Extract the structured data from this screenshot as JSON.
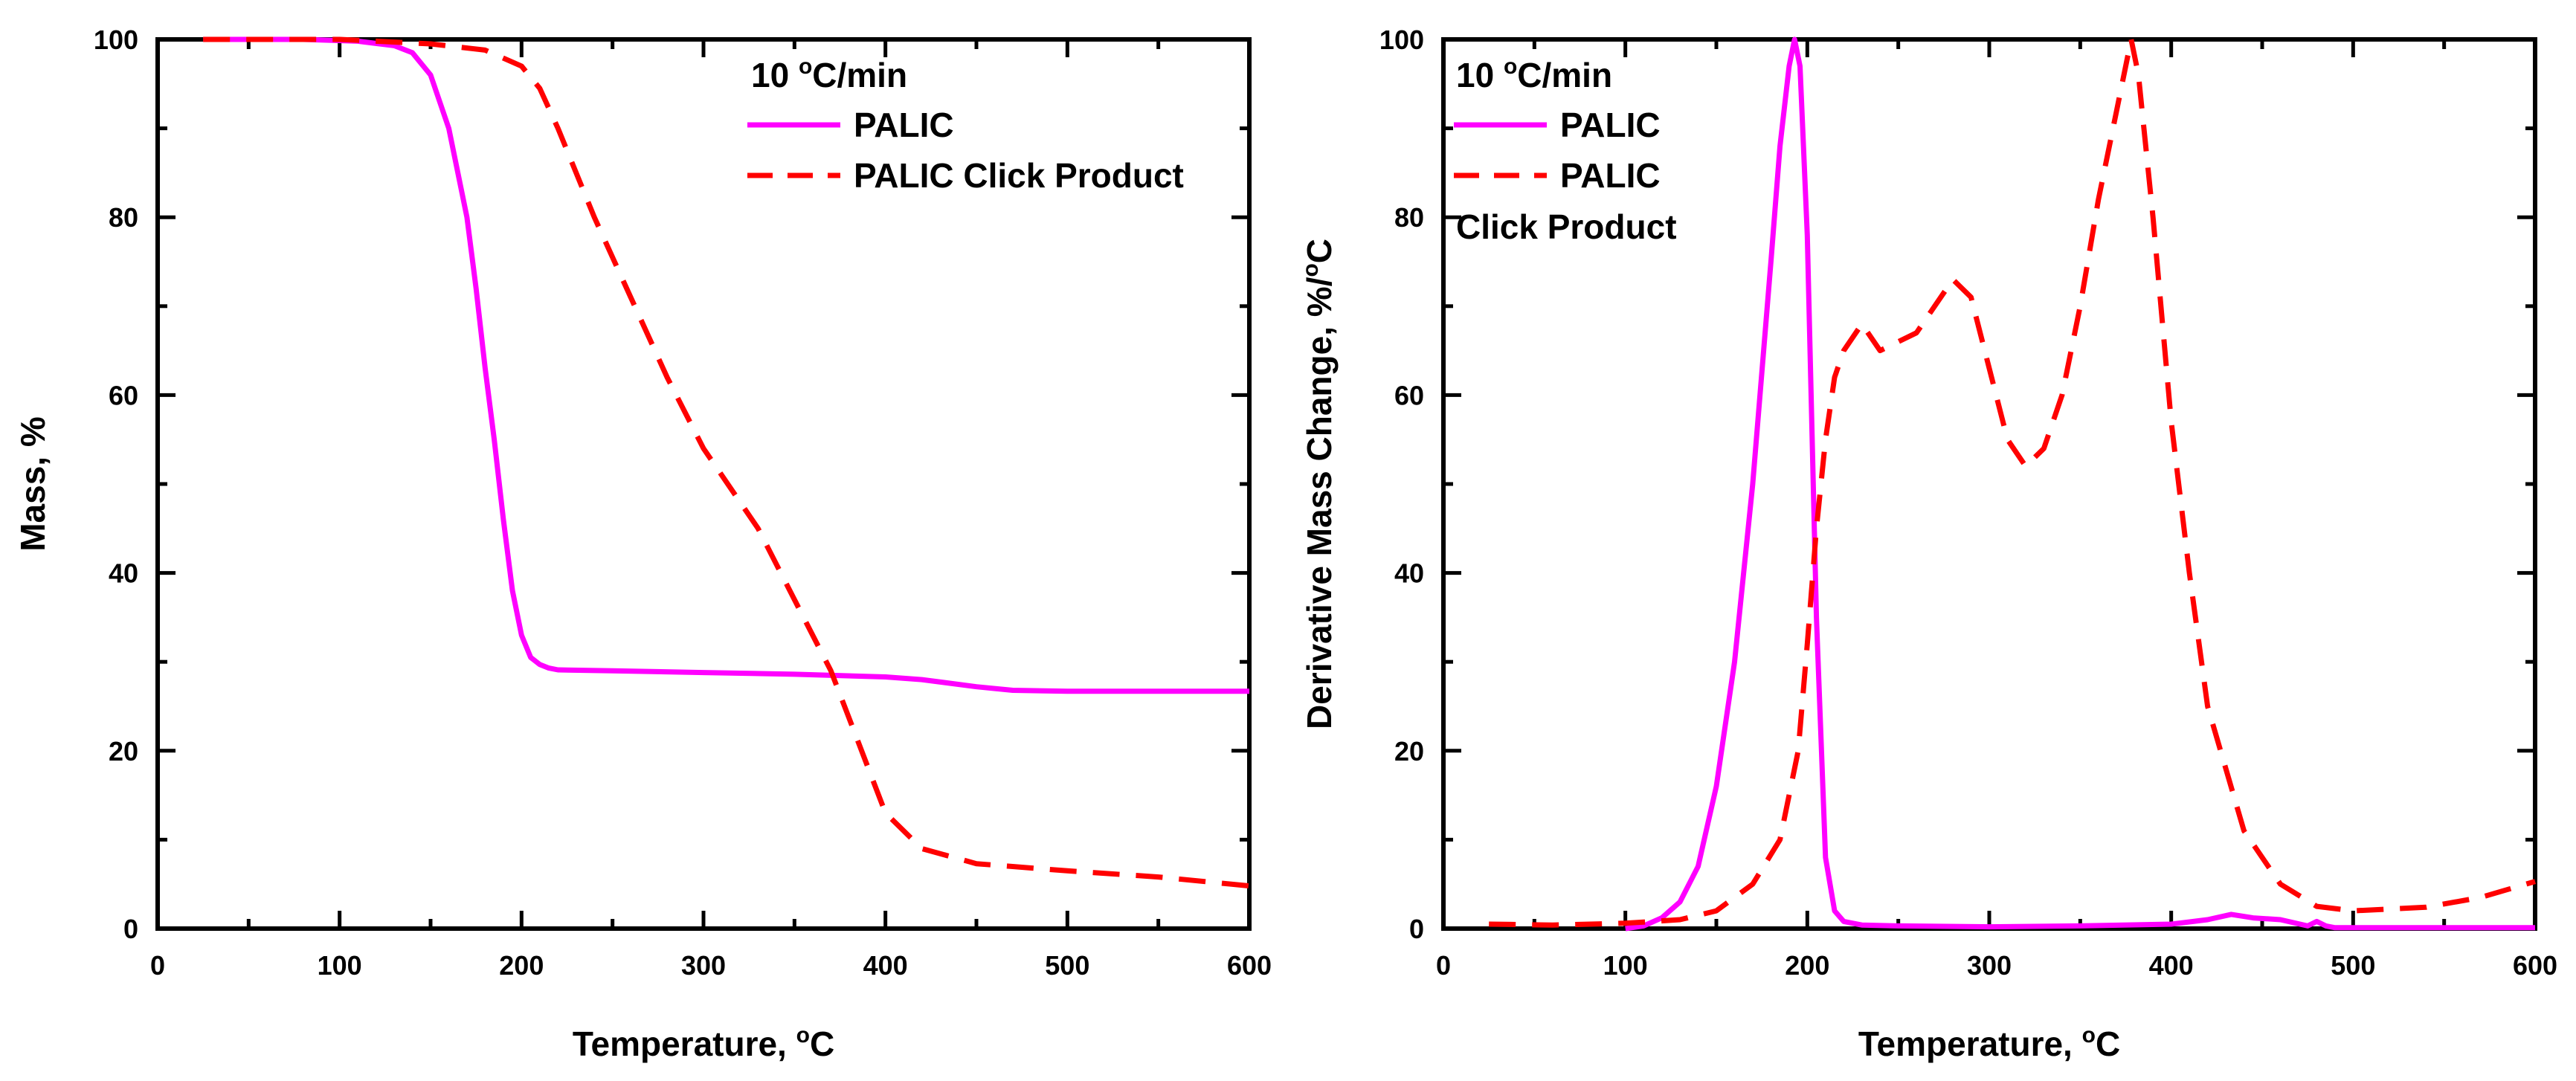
{
  "chart_data": [
    {
      "type": "line",
      "id": "left",
      "title": "",
      "xlabel": "Temperature, ",
      "xlabel_sup": "o",
      "xlabel_tail": "C",
      "ylabel": "Mass, %",
      "xlim": [
        0,
        600
      ],
      "ylim": [
        0,
        100
      ],
      "xticks": [
        0,
        100,
        200,
        300,
        400,
        500,
        600
      ],
      "yticks": [
        0,
        20,
        40,
        60,
        80,
        100
      ],
      "legend": {
        "placement": "top-right",
        "heading": "10 ",
        "heading_sup": "o",
        "heading_tail": "C/min",
        "items": [
          {
            "label": "PALIC",
            "style": "solid"
          },
          {
            "label": "PALIC Click Product",
            "style": "dashed"
          }
        ]
      },
      "series": [
        {
          "name": "PALIC",
          "style": "solid",
          "color": "#ff00ff",
          "x": [
            25,
            50,
            80,
            110,
            130,
            140,
            150,
            160,
            170,
            175,
            180,
            185,
            190,
            195,
            200,
            205,
            210,
            215,
            220,
            250,
            300,
            350,
            400,
            420,
            450,
            470,
            500,
            550,
            600
          ],
          "y": [
            100,
            100,
            100,
            99.8,
            99.3,
            98.5,
            96,
            90,
            80,
            72,
            63,
            55,
            46,
            38,
            33,
            30.5,
            29.7,
            29.3,
            29.1,
            29,
            28.8,
            28.6,
            28.3,
            28,
            27.2,
            26.8,
            26.7,
            26.7,
            26.7
          ]
        },
        {
          "name": "PALIC Click Product",
          "style": "dashed",
          "color": "#ff0000",
          "x": [
            25,
            100,
            150,
            180,
            200,
            210,
            220,
            240,
            260,
            280,
            300,
            330,
            350,
            370,
            385,
            400,
            420,
            450,
            500,
            550,
            600
          ],
          "y": [
            100,
            100,
            99.5,
            98.8,
            97,
            94.5,
            90,
            80,
            71,
            62,
            54,
            45,
            37,
            29,
            21,
            13,
            9,
            7.3,
            6.5,
            5.8,
            4.8
          ]
        }
      ]
    },
    {
      "type": "line",
      "id": "right",
      "title": "",
      "xlabel": "Temperature, ",
      "xlabel_sup": "o",
      "xlabel_tail": "C",
      "ylabel": "Derivative Mass Change, %/",
      "ylabel_sup": "o",
      "ylabel_tail": "C",
      "xlim": [
        0,
        600
      ],
      "ylim": [
        0,
        100
      ],
      "xticks": [
        0,
        100,
        200,
        300,
        400,
        500,
        600
      ],
      "yticks": [
        0,
        20,
        40,
        60,
        80,
        100
      ],
      "legend": {
        "placement": "top-left",
        "heading": "10 ",
        "heading_sup": "o",
        "heading_tail": "C/min",
        "items": [
          {
            "label": "PALIC",
            "style": "solid"
          },
          {
            "label": "PALIC",
            "style": "dashed"
          }
        ],
        "wrap_line": "Click Product"
      },
      "series": [
        {
          "name": "PALIC",
          "style": "solid",
          "color": "#ff00ff",
          "x": [
            100,
            110,
            120,
            130,
            140,
            150,
            160,
            170,
            180,
            185,
            190,
            193,
            196,
            200,
            205,
            210,
            215,
            220,
            230,
            250,
            300,
            350,
            400,
            420,
            433,
            445,
            460,
            475,
            480,
            485,
            490,
            500,
            600
          ],
          "y": [
            0,
            0.3,
            1.2,
            3,
            7,
            16,
            30,
            50,
            75,
            88,
            97,
            100,
            97,
            78,
            35,
            8,
            2,
            0.8,
            0.4,
            0.3,
            0.2,
            0.3,
            0.5,
            1,
            1.6,
            1.2,
            1,
            0.3,
            0.8,
            0.3,
            0.1,
            0.1,
            0.1
          ]
        },
        {
          "name": "PALIC Click Product",
          "style": "dashed",
          "color": "#ff0000",
          "x": [
            25,
            60,
            100,
            130,
            150,
            170,
            185,
            195,
            200,
            205,
            210,
            215,
            220,
            230,
            240,
            260,
            280,
            290,
            300,
            310,
            320,
            330,
            340,
            350,
            360,
            370,
            378,
            382,
            390,
            400,
            410,
            420,
            440,
            460,
            480,
            500,
            540,
            570,
            600
          ],
          "y": [
            0.5,
            0.4,
            0.6,
            1,
            2,
            5,
            10,
            20,
            32,
            45,
            55,
            62,
            65,
            68,
            65,
            67,
            73,
            71,
            63,
            55,
            52,
            54,
            60,
            70,
            82,
            92,
            100,
            96,
            80,
            57,
            40,
            25,
            11,
            5,
            2.5,
            2,
            2.4,
            3.5,
            5.3
          ]
        }
      ]
    }
  ]
}
